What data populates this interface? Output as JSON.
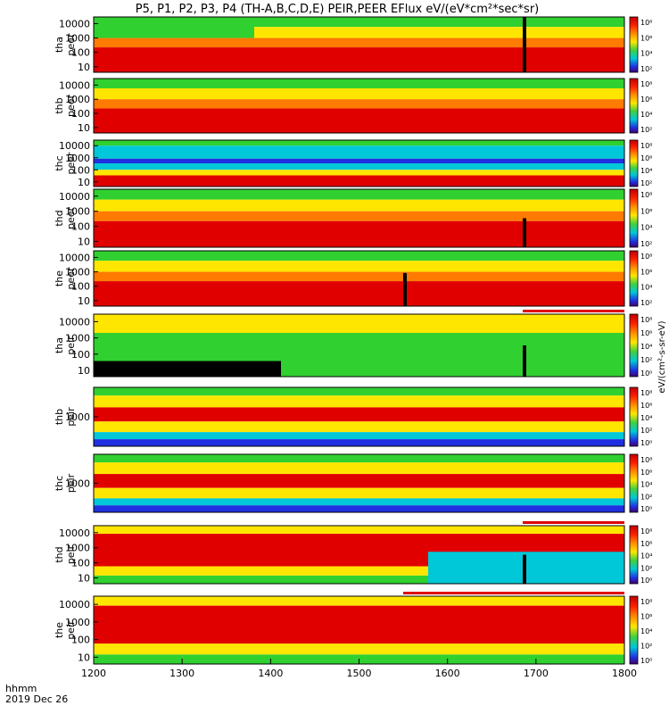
{
  "chart_data": {
    "type": "heatmap",
    "title": "P5, P1, P2, P3, P4 (TH-A,B,C,D,E) PEIR,PEER EFlux eV/(eV*cm²*sec*sr)",
    "colorbar_label": "eV/(cm²-s-sr-eV)",
    "colorbar_ticks": [
      "10⁸",
      "10⁶",
      "10⁴",
      "10²"
    ],
    "colorbar_ticks_alt": [
      "10⁸",
      "10⁶",
      "10⁴",
      "10²",
      "10⁰"
    ],
    "x_axis": {
      "ticks": [
        "1200",
        "1300",
        "1400",
        "1500",
        "1600",
        "1700",
        "1800"
      ],
      "range": [
        1200,
        1800
      ],
      "label_time": "hhmm",
      "label_date": "2019 Dec 26"
    },
    "panels": [
      {
        "probe": "tha",
        "species": "peer",
        "yticks": [
          "10000",
          "1000",
          "100",
          "10"
        ]
      },
      {
        "probe": "thb",
        "species": "peer",
        "yticks": [
          "10000",
          "1000",
          "100",
          "10"
        ]
      },
      {
        "probe": "thc",
        "species": "peer",
        "yticks": [
          "10000",
          "1000",
          "100",
          "10"
        ]
      },
      {
        "probe": "thd",
        "species": "peer",
        "yticks": [
          "10000",
          "1000",
          "100",
          "10"
        ]
      },
      {
        "probe": "the",
        "species": "peer",
        "yticks": [
          "10000",
          "1000",
          "100",
          "10"
        ]
      },
      {
        "probe": "tha",
        "species": "peir",
        "yticks": [
          "10000",
          "1000",
          "100",
          "10"
        ]
      },
      {
        "probe": "thb",
        "species": "peir",
        "yticks": [
          "1000"
        ]
      },
      {
        "probe": "thc",
        "species": "peir",
        "yticks": [
          "1000"
        ]
      },
      {
        "probe": "thd",
        "species": "peir",
        "yticks": [
          "10000",
          "1000",
          "100",
          "10"
        ]
      },
      {
        "probe": "the",
        "species": "peir",
        "yticks": [
          "10000",
          "1000",
          "100",
          "10"
        ]
      }
    ],
    "colors": {
      "red": "#e00000",
      "orange": "#ff7a00",
      "yellow": "#ffe600",
      "green": "#30d030",
      "cyan": "#00c8d8",
      "blue": "#2030e0",
      "black": "#000000"
    }
  }
}
